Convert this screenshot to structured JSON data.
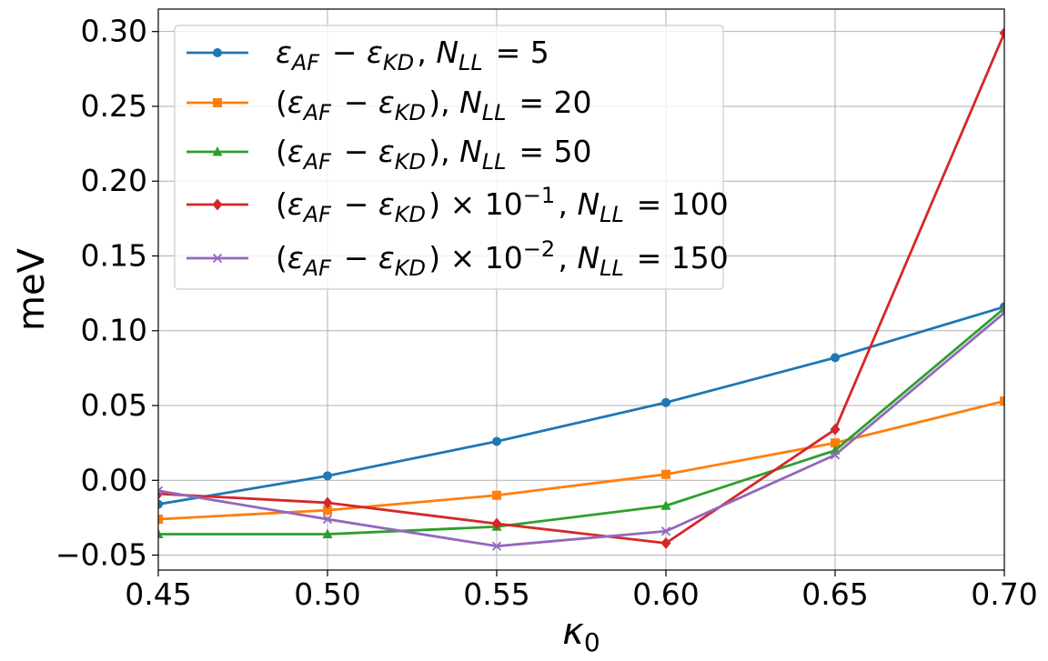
{
  "chart_data": {
    "type": "line",
    "xlabel": "κ0",
    "ylabel": "meV",
    "xlim": [
      0.45,
      0.7
    ],
    "ylim": [
      -0.06,
      0.315
    ],
    "x": [
      0.45,
      0.5,
      0.55,
      0.6,
      0.65,
      0.7
    ],
    "x_ticks": [
      "0.45",
      "0.50",
      "0.55",
      "0.60",
      "0.65",
      "0.70"
    ],
    "y_ticks": [
      "−0.05",
      "0.00",
      "0.05",
      "0.10",
      "0.15",
      "0.20",
      "0.25",
      "0.30"
    ],
    "grid": true,
    "legend_position": "upper-left",
    "series": [
      {
        "name": "εAF − εKD, NLL = 5",
        "color": "#1f77b4",
        "marker": "circle",
        "values": [
          -0.016,
          0.003,
          0.026,
          0.052,
          0.082,
          0.116
        ]
      },
      {
        "name": "(εAF − εKD), NLL = 20",
        "color": "#ff7f0e",
        "marker": "square",
        "values": [
          -0.026,
          -0.02,
          -0.01,
          0.004,
          0.025,
          0.053
        ]
      },
      {
        "name": "(εAF − εKD), NLL = 50",
        "color": "#2ca02c",
        "marker": "triangle",
        "values": [
          -0.036,
          -0.036,
          -0.031,
          -0.017,
          0.02,
          0.115
        ]
      },
      {
        "name": "(εAF − εKD) × 10−1, NLL = 100",
        "color": "#d62728",
        "marker": "diamond",
        "values": [
          -0.009,
          -0.015,
          -0.029,
          -0.042,
          0.034,
          0.299
        ]
      },
      {
        "name": "(εAF − εKD) × 10−2, NLL = 150",
        "color": "#9467bd",
        "marker": "x",
        "values": [
          -0.007,
          -0.026,
          -0.044,
          -0.034,
          0.017,
          0.112
        ]
      }
    ]
  }
}
